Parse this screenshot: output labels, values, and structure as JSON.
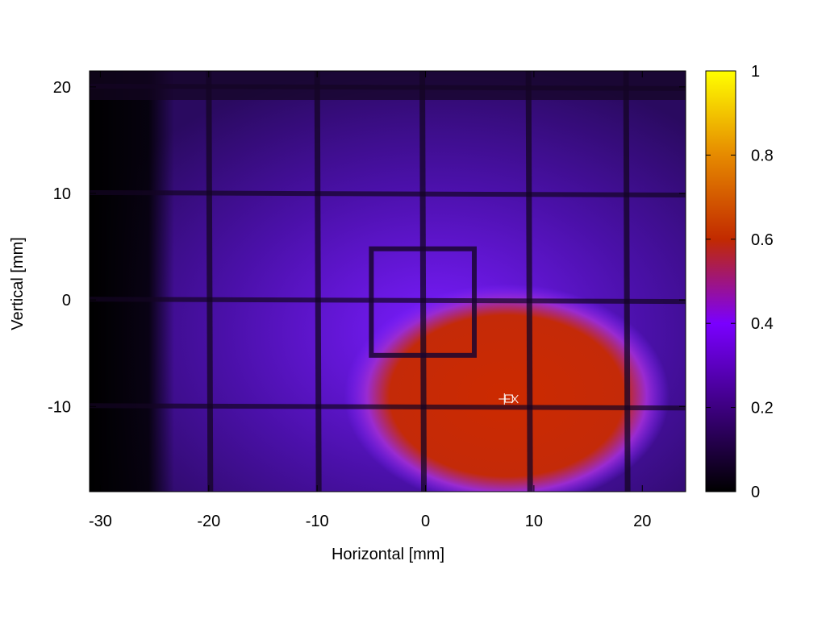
{
  "chart_data": {
    "type": "heatmap",
    "title": "",
    "xlabel": "Horizontal [mm]",
    "ylabel": "Vertical [mm]",
    "xlim": [
      -31,
      24
    ],
    "ylim": [
      -18,
      21.5
    ],
    "x_ticks": [
      {
        "value": -30,
        "label": "-30"
      },
      {
        "value": -20,
        "label": "-20"
      },
      {
        "value": -10,
        "label": "-10"
      },
      {
        "value": 0,
        "label": "0"
      },
      {
        "value": 10,
        "label": "10"
      },
      {
        "value": 20,
        "label": "20"
      }
    ],
    "y_ticks": [
      {
        "value": 20,
        "label": "20"
      },
      {
        "value": 10,
        "label": "10"
      },
      {
        "value": 0,
        "label": "0"
      },
      {
        "value": -10,
        "label": "-10"
      }
    ],
    "colorbar": {
      "range": [
        0,
        1
      ],
      "ticks": [
        {
          "value": 0,
          "label": "0"
        },
        {
          "value": 0.2,
          "label": "0.2"
        },
        {
          "value": 0.4,
          "label": "0.4"
        },
        {
          "value": 0.6,
          "label": "0.6"
        },
        {
          "value": 0.8,
          "label": "0.8"
        },
        {
          "value": 1,
          "label": "1"
        }
      ],
      "colormap": [
        "#000000",
        "#3d0080",
        "#7a00ff",
        "#c22a00",
        "#e68a00",
        "#ffff00"
      ]
    },
    "background_intensity": 0.13,
    "beam_spot": {
      "center_x": 7.5,
      "center_y": -9.0,
      "radius_x": 15.0,
      "radius_y": 10.5,
      "peak_intensity": 0.5
    },
    "grid_lines_x": [
      -20,
      -10,
      -0.3,
      9.5,
      18.5
    ],
    "grid_lines_y": [
      20,
      10,
      0,
      -10
    ],
    "inner_square": {
      "x0": -5,
      "x1": 4.5,
      "y0": -5.2,
      "y1": 4.8
    },
    "beam_center_marker": {
      "x": 7.5,
      "y": -9.3
    }
  }
}
